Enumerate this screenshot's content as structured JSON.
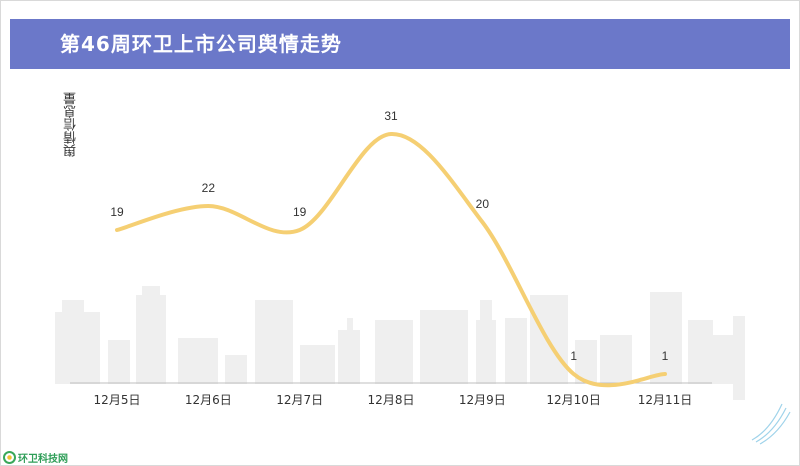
{
  "header": {
    "title": "第46周环卫上市公司舆情走势"
  },
  "chart_data": {
    "type": "line",
    "title": "第46周环卫上市公司舆情走势",
    "xlabel": "",
    "ylabel": "舆情信息量",
    "categories": [
      "12月5日",
      "12月6日",
      "12月7日",
      "12月8日",
      "12月9日",
      "12月10日",
      "12月11日"
    ],
    "series": [
      {
        "values": [
          19,
          22,
          19,
          31,
          20,
          1,
          1
        ]
      }
    ],
    "ylim": [
      0,
      37
    ],
    "grid": false,
    "legend": "none",
    "line_color": "#f5cf73",
    "label_color": "#333333",
    "smooth": true
  },
  "colors": {
    "header_bg": "#6b78c9",
    "skyline": "#efefef",
    "axis": "#bfbfbf"
  },
  "logo": {
    "text": "环卫科技网",
    "icon": "leaf-circle-icon"
  }
}
